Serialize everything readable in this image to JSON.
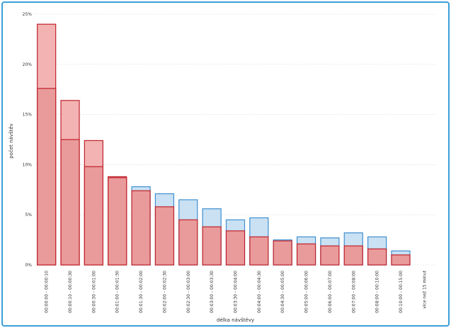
{
  "chart_data": {
    "type": "bar",
    "stacked_overlay": true,
    "ylabel": "počet návštěv",
    "xlabel": "délka návštěvy",
    "ylim": [
      0,
      25
    ],
    "yticks": [
      "0%",
      "5%",
      "10%",
      "15%",
      "20%",
      "25%"
    ],
    "categories": [
      "00:00:00 - 00:00:10",
      "00:00:10 - 00:00:30",
      "00:00:30 - 00:01:00",
      "00:01:00 - 00:01:30",
      "00:01:30 - 00:02:00",
      "00:02:00 - 00:02:30",
      "00:02:30 - 00:03:00",
      "00:03:00 - 00:03:30",
      "00:03:30 - 00:04:00",
      "00:04:00 - 00:04:30",
      "00:04:30 - 00:05:00",
      "00:05:00 - 00:06:00",
      "00:06:00 - 00:07:00",
      "00:07:00 - 00:08:00",
      "00:08:00 - 00:10:00",
      "00:10:00 - 00:15:00",
      "více než 15 minut"
    ],
    "series": [
      {
        "values": [
          17.6,
          12.5,
          9.8,
          8.7,
          7.4,
          5.8,
          4.5,
          3.8,
          3.4,
          2.8,
          2.4,
          2.1,
          1.9,
          1.9,
          1.6,
          1.0,
          0
        ]
      },
      {
        "values": [
          24.0,
          16.4,
          12.4,
          8.8,
          7.8,
          7.1,
          6.5,
          5.6,
          4.5,
          4.7,
          2.5,
          2.8,
          2.7,
          3.2,
          2.8,
          1.4,
          0
        ]
      }
    ],
    "colors": {
      "base_fill": "#e99a9a",
      "base_stroke": "#c0212a",
      "over_red_fill": "#f3b3b3",
      "over_blue_fill": "#c9e1f3",
      "over_blue_stroke": "#3f8fcf",
      "grid": "#d8d8d8"
    }
  }
}
